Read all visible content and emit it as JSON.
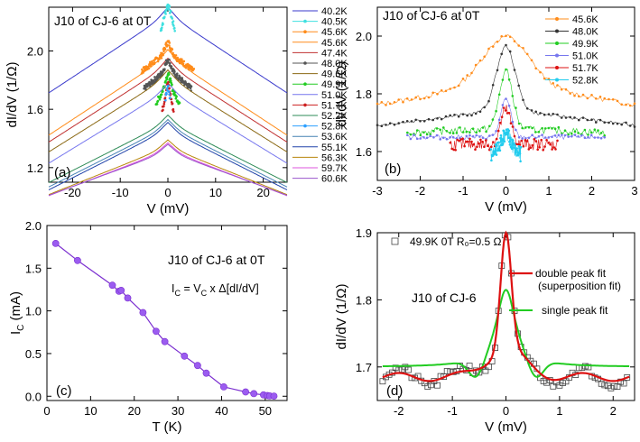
{
  "chart_data": [
    {
      "panel": "(a)",
      "type": "line",
      "title": "J10 of CJ-6 at 0T",
      "xlabel": "V (mV)",
      "ylabel": "dI/dV (1/Ω)",
      "xlim": [
        -25,
        25
      ],
      "ylim": [
        1.1,
        2.3
      ],
      "xticks": [
        -20,
        -10,
        0,
        10,
        20
      ],
      "yticks": [
        1.2,
        1.6,
        2.0
      ],
      "legend_position": "right",
      "series": [
        {
          "name": "40.2K",
          "color": "#3a3acc",
          "g0": 2.28,
          "slope": 0.0215,
          "range": [
            -25,
            25
          ],
          "peak": 0.0,
          "width": 1.5,
          "style": "line"
        },
        {
          "name": "40.5K",
          "color": "#40e0e0",
          "g0": 2.26,
          "slope": 0.0,
          "range": [
            -1.5,
            1.5
          ],
          "peak": 0.1,
          "width": 1.0,
          "style": "points"
        },
        {
          "name": "45.6K",
          "color": "#ff8c1a",
          "g0": 2.0,
          "slope": 0.0,
          "range": [
            -5.5,
            5.5
          ],
          "peak": 0.0,
          "width": 0.6,
          "style": "points"
        },
        {
          "name": "45.6K",
          "color": "#ff8c1a",
          "g0": 1.99,
          "slope": 0.0215,
          "range": [
            -25,
            25
          ],
          "peak": 0.0,
          "width": 1.5,
          "style": "line"
        },
        {
          "name": "47.4K",
          "color": "#c03030",
          "g0": 1.93,
          "slope": 0.021,
          "range": [
            -25,
            25
          ],
          "peak": 0.0,
          "width": 1.5,
          "style": "line"
        },
        {
          "name": "48.0K",
          "color": "#555555",
          "g0": 1.88,
          "slope": 0.0,
          "range": [
            -5,
            5
          ],
          "peak": 0.0,
          "width": 0.6,
          "style": "points"
        },
        {
          "name": "49.6K",
          "color": "#8b6914",
          "g0": 1.85,
          "slope": 0.0205,
          "range": [
            -25,
            25
          ],
          "peak": 0.0,
          "width": 1.5,
          "style": "line"
        },
        {
          "name": "49.9K",
          "color": "#22cc22",
          "g0": 1.78,
          "slope": 0.0,
          "range": [
            -2.5,
            2.5
          ],
          "peak": 0.0,
          "width": 0.6,
          "style": "points"
        },
        {
          "name": "51.0K",
          "color": "#7777ee",
          "g0": 1.76,
          "slope": 0.02,
          "range": [
            -25,
            25
          ],
          "peak": 0.0,
          "width": 1.5,
          "style": "line"
        },
        {
          "name": "51.7K",
          "color": "#cc2020",
          "g0": 1.72,
          "slope": 0.0,
          "range": [
            -1.2,
            1.2
          ],
          "peak": 0.0,
          "width": 0.6,
          "style": "points"
        },
        {
          "name": "52.2K",
          "color": "#2e8b57",
          "g0": 1.54,
          "slope": 0.0165,
          "range": [
            -25,
            25
          ],
          "peak": 0.0,
          "width": 1.5,
          "style": "line"
        },
        {
          "name": "52.8K",
          "color": "#2ea0ff",
          "g0": 1.7,
          "slope": 0.0,
          "range": [
            -0.5,
            0.5
          ],
          "peak": 0.0,
          "width": 0.6,
          "style": "points"
        },
        {
          "name": "53.6K",
          "color": "#4682b4",
          "g0": 1.51,
          "slope": 0.0165,
          "range": [
            -25,
            25
          ],
          "peak": 0.0,
          "width": 1.5,
          "style": "line"
        },
        {
          "name": "55.1K",
          "color": "#2244aa",
          "g0": 1.49,
          "slope": 0.0165,
          "range": [
            -25,
            25
          ],
          "peak": 0.0,
          "width": 1.5,
          "style": "line"
        },
        {
          "name": "56.3K",
          "color": "#b8860b",
          "g0": 1.37,
          "slope": 0.013,
          "range": [
            -25,
            25
          ],
          "peak": 0.0,
          "width": 1.5,
          "style": "line"
        },
        {
          "name": "59.7K",
          "color": "#dd55dd",
          "g0": 1.35,
          "slope": 0.0125,
          "range": [
            -25,
            25
          ],
          "peak": 0.0,
          "width": 1.5,
          "style": "line"
        },
        {
          "name": "60.6K",
          "color": "#9955cc",
          "g0": 1.34,
          "slope": 0.012,
          "range": [
            -25,
            25
          ],
          "peak": 0.0,
          "width": 1.5,
          "style": "line"
        }
      ]
    },
    {
      "panel": "(b)",
      "type": "scatter",
      "title": "J10 of CJ-6 at 0T",
      "xlabel": "V (mV)",
      "ylabel": "dI/dV (1/Ω)",
      "xlim": [
        -3,
        3
      ],
      "ylim": [
        1.5,
        2.1
      ],
      "xticks": [
        -3,
        -2,
        -1,
        0,
        1,
        2,
        3
      ],
      "yticks": [
        1.6,
        1.8,
        2.0
      ],
      "legend_position": "top-right",
      "series": [
        {
          "name": "45.6K",
          "color": "#ff8c1a",
          "marker": "circle",
          "range": [
            -3,
            3
          ],
          "base": 1.84,
          "slope": 0.065,
          "amp": 0.16,
          "width": 0.55,
          "noise": 0.008
        },
        {
          "name": "48.0K",
          "color": "#333333",
          "marker": "circle",
          "range": [
            -3,
            3
          ],
          "base": 1.745,
          "slope": 0.045,
          "amp": 0.22,
          "width": 0.22,
          "noise": 0.006
        },
        {
          "name": "49.9K",
          "color": "#22cc22",
          "marker": "square",
          "range": [
            -2.3,
            2.3
          ],
          "base": 1.68,
          "slope": 0.015,
          "amp": 0.2,
          "width": 0.15,
          "noise": 0.012
        },
        {
          "name": "51.0K",
          "color": "#7777ee",
          "marker": "circle",
          "range": [
            -2.3,
            2.3
          ],
          "base": 1.65,
          "slope": 0.0,
          "amp": 0.13,
          "width": 0.12,
          "noise": 0.008
        },
        {
          "name": "51.7K",
          "color": "#dd1111",
          "marker": "star",
          "range": [
            -1.3,
            1.2
          ],
          "base": 1.625,
          "slope": 0.0,
          "amp": 0.12,
          "width": 0.12,
          "noise": 0.02
        },
        {
          "name": "52.8K",
          "color": "#22ccee",
          "marker": "star",
          "range": [
            -0.35,
            0.35
          ],
          "base": 1.59,
          "slope": 0.0,
          "amp": 0.07,
          "width": 0.12,
          "noise": 0.025
        }
      ]
    },
    {
      "panel": "(c)",
      "type": "line",
      "title": "J10 of CJ-6 at 0T",
      "formula": "I_C = V_C x Δ[dI/dV]",
      "xlabel": "T (K)",
      "ylabel": "I_C (mA)",
      "xlim": [
        0,
        55
      ],
      "ylim": [
        -0.05,
        2.0
      ],
      "xticks": [
        0,
        10,
        20,
        30,
        40,
        50
      ],
      "yticks": [
        0.0,
        0.5,
        1.0,
        1.5,
        2.0
      ],
      "series": [
        {
          "name": "",
          "color": "#7b2fd0",
          "x": [
            2,
            7,
            15,
            16.5,
            17,
            18.5,
            22,
            25,
            27,
            31.5,
            34.5,
            36.5,
            40.5,
            45.5,
            47.4,
            49.6,
            50.5,
            51,
            52
          ],
          "y": [
            1.79,
            1.59,
            1.3,
            1.23,
            1.24,
            1.15,
            0.98,
            0.76,
            0.64,
            0.47,
            0.36,
            0.27,
            0.11,
            0.05,
            0.03,
            0.015,
            0.008,
            0.004,
            0.002
          ]
        }
      ]
    },
    {
      "panel": "(d)",
      "type": "scatter",
      "subtitle": "J10 of CJ-6",
      "xlabel": "V (mV)",
      "ylabel": "dI/dV (1/Ω)",
      "xlim": [
        -2.4,
        2.4
      ],
      "ylim": [
        1.65,
        1.9
      ],
      "xticks": [
        -2,
        -1,
        0,
        1,
        2
      ],
      "yticks": [
        1.7,
        1.8,
        1.9
      ],
      "legend_position": "right",
      "legend_data": "49.9K  0T  R₀=0.5 Ω",
      "data_points": {
        "color": "#444444",
        "marker": "open-square",
        "range": [
          -2.3,
          2.3
        ],
        "base": 1.685,
        "amp": 0.175,
        "width": 0.1
      },
      "series": [
        {
          "name": "double peak fit",
          "name2": "(superposition fit)",
          "color": "#dd1111",
          "amp": 0.175,
          "width": 0.1,
          "base": 1.685
        },
        {
          "name": "single peak fit",
          "color": "#22cc22",
          "amp": 0.115,
          "width": 0.22,
          "base": 1.7
        }
      ]
    }
  ]
}
